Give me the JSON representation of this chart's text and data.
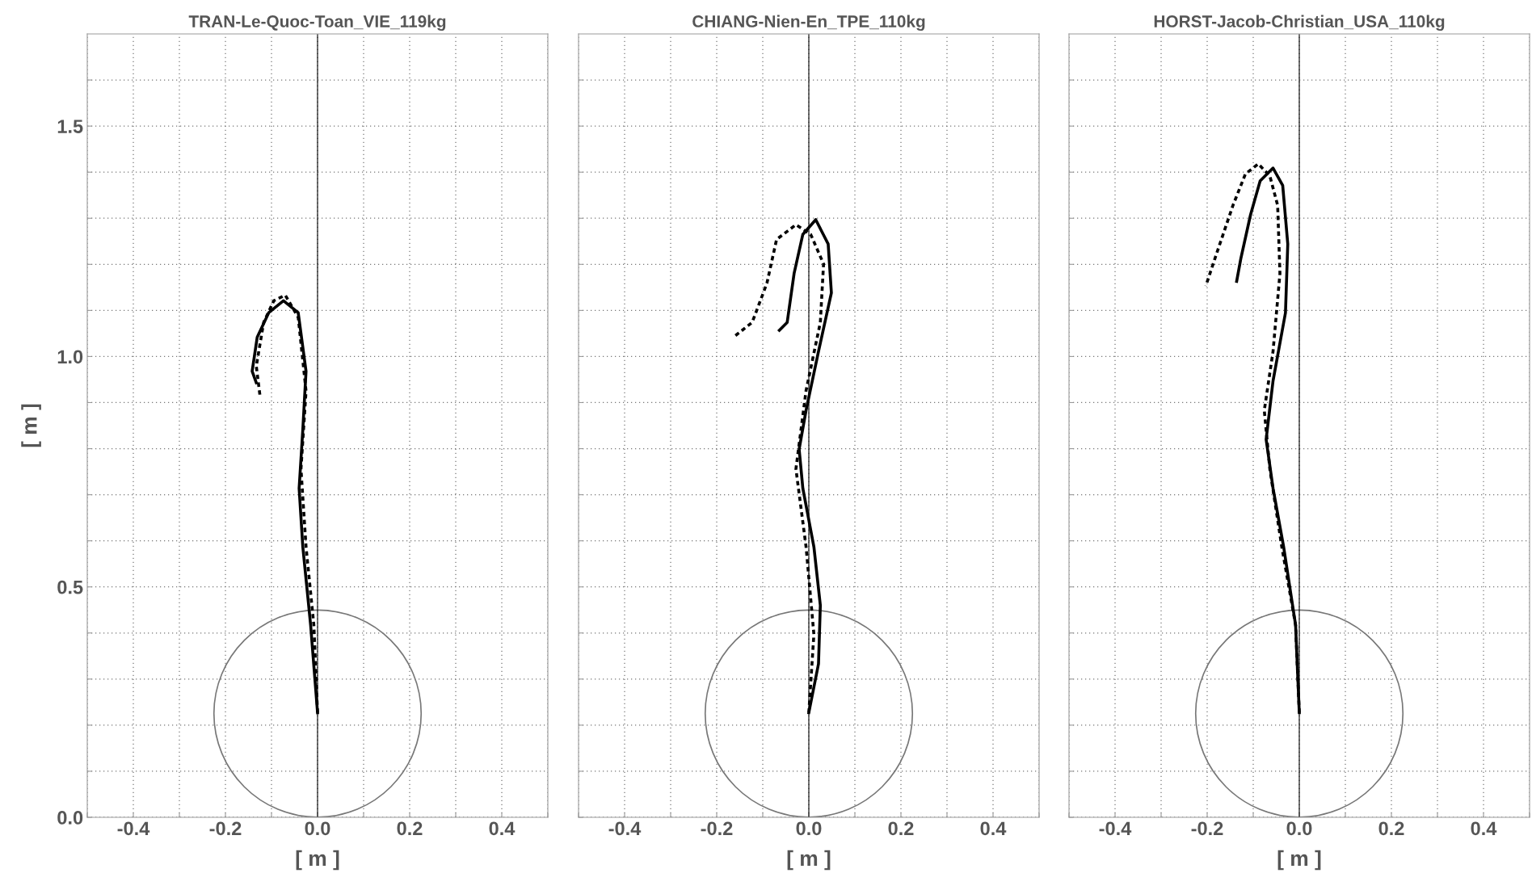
{
  "chart_data": [
    {
      "type": "line",
      "title": "TRAN-Le-Quoc-Toan_VIE_119kg",
      "xlabel": "[ m ]",
      "ylabel": "[ m ]",
      "xlim": [
        -0.5,
        0.5
      ],
      "ylim": [
        0,
        1.7
      ],
      "xticks": [
        {
          "value": -0.5,
          "label": null
        },
        -0.4,
        {
          "value": -0.3,
          "label": null
        },
        -0.2,
        {
          "value": -0.1,
          "label": null
        },
        {
          "value": 0,
          "label": "0.0"
        },
        {
          "value": 0.1,
          "label": null
        },
        0.2,
        {
          "value": 0.3,
          "label": null
        },
        0.4,
        {
          "value": 0.5,
          "label": null
        }
      ],
      "yticks": [
        {
          "value": 0,
          "label": "0.0"
        },
        {
          "value": 0.1,
          "label": null
        },
        {
          "value": 0.2,
          "label": null
        },
        {
          "value": 0.3,
          "label": null
        },
        {
          "value": 0.4,
          "label": null
        },
        0.5,
        {
          "value": 0.6,
          "label": null
        },
        {
          "value": 0.7,
          "label": null
        },
        {
          "value": 0.8,
          "label": null
        },
        {
          "value": 0.9,
          "label": null
        },
        {
          "value": 1,
          "label": "1.0"
        },
        {
          "value": 1.1,
          "label": null
        },
        {
          "value": 1.2,
          "label": null
        },
        {
          "value": 1.3,
          "label": null
        },
        {
          "value": 1.4,
          "label": null
        },
        1.5,
        {
          "value": 1.6,
          "label": null
        }
      ],
      "grid": true,
      "ref_lines": [
        {
          "axis": "x",
          "value": 0,
          "color": "#000000"
        }
      ],
      "series": [
        {
          "color": "#000000",
          "line_style": "solid",
          "x": [
            0,
            -0.015,
            -0.032,
            -0.04,
            -0.032,
            -0.025,
            -0.042,
            -0.074,
            -0.106,
            -0.131,
            -0.142,
            -0.133
          ],
          "values": [
            0.227,
            0.417,
            0.587,
            0.714,
            0.841,
            0.968,
            1.095,
            1.121,
            1.095,
            1.042,
            0.968,
            0.943
          ]
        },
        {
          "color": "#000000",
          "line_style": "dotted",
          "x": [
            0,
            -0.008,
            -0.025,
            -0.036,
            -0.025,
            -0.042,
            -0.07,
            -0.095,
            -0.117,
            -0.133,
            -0.125
          ],
          "values": [
            0.227,
            0.417,
            0.587,
            0.756,
            0.925,
            1.085,
            1.133,
            1.121,
            1.074,
            0.979,
            0.915
          ]
        }
      ]
    },
    {
      "type": "line",
      "title": "CHIANG-Nien-En_TPE_110kg",
      "xlabel": "[ m ]",
      "tick_labels": "x",
      "xlim": [
        -0.5,
        0.5
      ],
      "ylim": [
        0,
        1.7
      ],
      "xticks": [
        {
          "value": -0.5,
          "label": null
        },
        -0.4,
        {
          "value": -0.3,
          "label": null
        },
        -0.2,
        {
          "value": -0.1,
          "label": null
        },
        {
          "value": 0,
          "label": "0.0"
        },
        {
          "value": 0.1,
          "label": null
        },
        0.2,
        {
          "value": 0.3,
          "label": null
        },
        0.4,
        {
          "value": 0.5,
          "label": null
        }
      ],
      "yticks": [
        {
          "value": 0,
          "label": null
        },
        {
          "value": 0.1,
          "label": null
        },
        {
          "value": 0.2,
          "label": null
        },
        {
          "value": 0.3,
          "label": null
        },
        {
          "value": 0.4,
          "label": null
        },
        {
          "value": 0.5,
          "label": null
        },
        {
          "value": 0.6,
          "label": null
        },
        {
          "value": 0.7,
          "label": null
        },
        {
          "value": 0.8,
          "label": null
        },
        {
          "value": 0.9,
          "label": null
        },
        {
          "value": 1,
          "label": null
        },
        {
          "value": 1.1,
          "label": null
        },
        {
          "value": 1.2,
          "label": null
        },
        {
          "value": 1.3,
          "label": null
        },
        {
          "value": 1.4,
          "label": null
        },
        {
          "value": 1.5,
          "label": null
        },
        {
          "value": 1.6,
          "label": null
        }
      ],
      "grid": true,
      "ref_lines": [
        {
          "axis": "x",
          "value": 0,
          "color": "#000000"
        }
      ],
      "series": [
        {
          "color": "#000000",
          "line_style": "solid",
          "x": [
            0,
            0.021,
            0.025,
            0.011,
            -0.013,
            -0.021,
            -0.006,
            0.021,
            0.049,
            0.042,
            0.015,
            -0.013,
            -0.032,
            -0.047,
            -0.064
          ],
          "values": [
            0.227,
            0.333,
            0.46,
            0.587,
            0.714,
            0.799,
            0.883,
            1.011,
            1.138,
            1.244,
            1.297,
            1.265,
            1.18,
            1.074,
            1.057
          ]
        },
        {
          "color": "#000000",
          "line_style": "dotted",
          "x": [
            0,
            0.011,
            -0.006,
            -0.028,
            -0.006,
            0.025,
            0.032,
            0.004,
            -0.028,
            -0.07,
            -0.091,
            -0.123,
            -0.161
          ],
          "values": [
            0.227,
            0.397,
            0.587,
            0.756,
            0.926,
            1.074,
            1.201,
            1.265,
            1.286,
            1.254,
            1.159,
            1.074,
            1.044
          ]
        }
      ]
    },
    {
      "type": "line",
      "title": "HORST-Jacob-Christian_USA_110kg",
      "xlabel": "[ m ]",
      "tick_labels": "x",
      "xlim": [
        -0.5,
        0.5
      ],
      "ylim": [
        0,
        1.7
      ],
      "xticks": [
        {
          "value": -0.5,
          "label": null
        },
        -0.4,
        {
          "value": -0.3,
          "label": null
        },
        -0.2,
        {
          "value": -0.1,
          "label": null
        },
        {
          "value": 0,
          "label": "0.0"
        },
        {
          "value": 0.1,
          "label": null
        },
        0.2,
        {
          "value": 0.3,
          "label": null
        },
        0.4,
        {
          "value": 0.5,
          "label": null
        }
      ],
      "yticks": [
        {
          "value": 0,
          "label": null
        },
        {
          "value": 0.1,
          "label": null
        },
        {
          "value": 0.2,
          "label": null
        },
        {
          "value": 0.3,
          "label": null
        },
        {
          "value": 0.4,
          "label": null
        },
        {
          "value": 0.5,
          "label": null
        },
        {
          "value": 0.6,
          "label": null
        },
        {
          "value": 0.7,
          "label": null
        },
        {
          "value": 0.8,
          "label": null
        },
        {
          "value": 0.9,
          "label": null
        },
        {
          "value": 1,
          "label": null
        },
        {
          "value": 1.1,
          "label": null
        },
        {
          "value": 1.2,
          "label": null
        },
        {
          "value": 1.3,
          "label": null
        },
        {
          "value": 1.4,
          "label": null
        },
        {
          "value": 1.5,
          "label": null
        },
        {
          "value": 1.6,
          "label": null
        }
      ],
      "grid": true,
      "ref_lines": [
        {
          "axis": "x",
          "value": 0,
          "color": "#000000"
        }
      ],
      "series": [
        {
          "color": "#000000",
          "line_style": "solid",
          "x": [
            0,
            -0.008,
            -0.034,
            -0.057,
            -0.072,
            -0.057,
            -0.03,
            -0.025,
            -0.036,
            -0.057,
            -0.085,
            -0.106,
            -0.127,
            -0.136
          ],
          "values": [
            0.227,
            0.417,
            0.587,
            0.714,
            0.82,
            0.947,
            1.095,
            1.244,
            1.371,
            1.409,
            1.381,
            1.307,
            1.212,
            1.163
          ]
        },
        {
          "color": "#000000",
          "line_style": "dotted",
          "x": [
            0,
            -0.008,
            -0.038,
            -0.064,
            -0.076,
            -0.057,
            -0.042,
            -0.047,
            -0.064,
            -0.089,
            -0.117,
            -0.144,
            -0.18,
            -0.203
          ],
          "values": [
            0.227,
            0.417,
            0.587,
            0.756,
            0.883,
            1.011,
            1.18,
            1.328,
            1.392,
            1.418,
            1.396,
            1.328,
            1.222,
            1.153
          ]
        }
      ]
    }
  ]
}
